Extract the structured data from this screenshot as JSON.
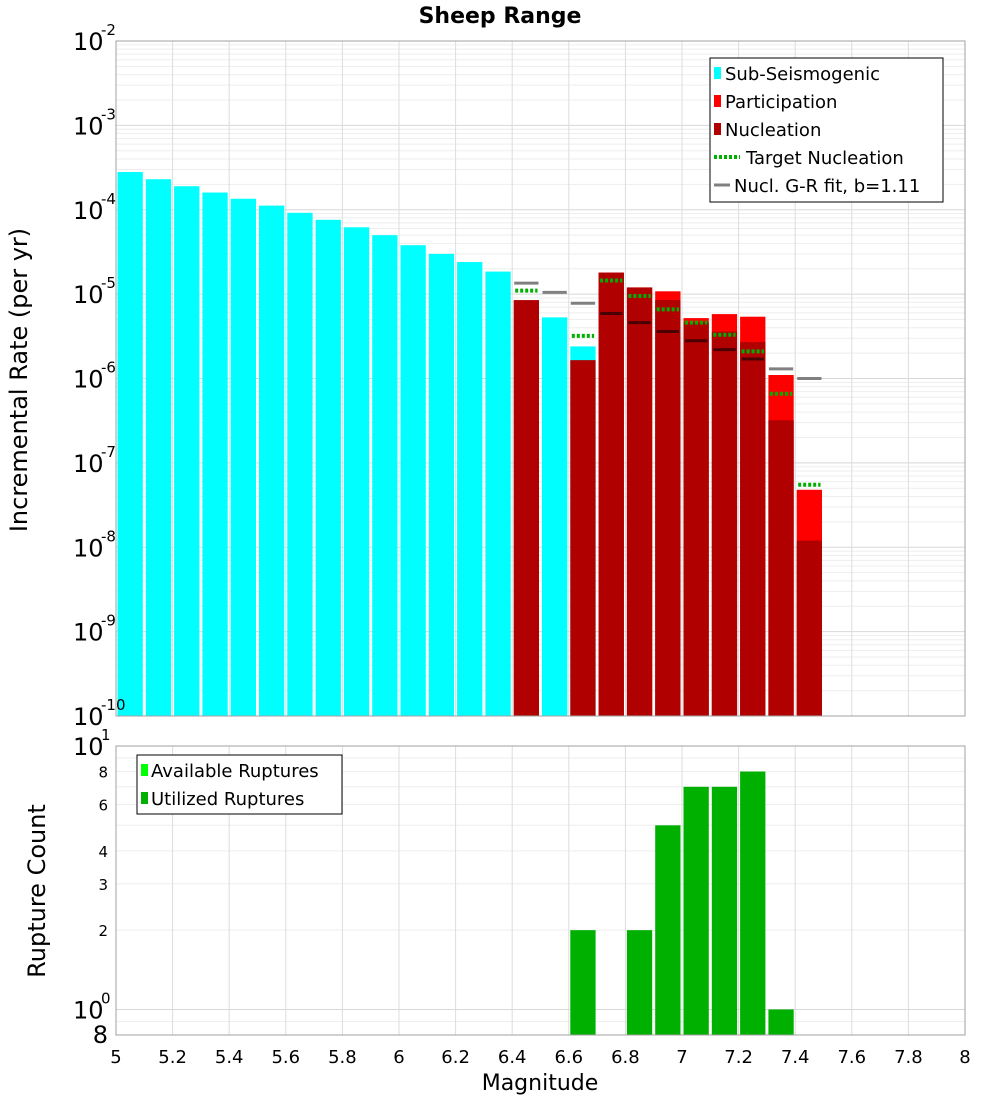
{
  "chart_data": [
    {
      "type": "bar",
      "title": "Sheep Range",
      "ylabel": "Incremental Rate (per yr)",
      "y_scale": "log",
      "ylim_exponents": [
        -10,
        -2
      ],
      "y_tick_exponents": [
        "-10",
        "-9",
        "-8",
        "-7",
        "-6",
        "-5",
        "-4",
        "-3",
        "-2"
      ],
      "xlim": [
        5,
        8
      ],
      "bin_width": 0.1,
      "colors": {
        "sub_seismogenic": "#00ffff",
        "participation": "#ff0000",
        "nucleation": "#b00000",
        "target_nucleation": "#00b000",
        "gr_fit": "#808080",
        "nucleation_marker": "#4a0000"
      },
      "legend": {
        "position": "top-right",
        "entries": [
          "Sub-Seismogenic",
          "Participation",
          "Nucleation",
          "Target Nucleation",
          "Nucl. G-R fit, b=1.11"
        ]
      },
      "series": [
        {
          "name": "Sub-Seismogenic",
          "kind": "bar",
          "points": [
            {
              "x": 5.05,
              "y": 0.00028
            },
            {
              "x": 5.15,
              "y": 0.00023
            },
            {
              "x": 5.25,
              "y": 0.00019
            },
            {
              "x": 5.35,
              "y": 0.00016
            },
            {
              "x": 5.45,
              "y": 0.000135
            },
            {
              "x": 5.55,
              "y": 0.000112
            },
            {
              "x": 5.65,
              "y": 9.2e-05
            },
            {
              "x": 5.75,
              "y": 7.6e-05
            },
            {
              "x": 5.85,
              "y": 6.2e-05
            },
            {
              "x": 5.95,
              "y": 5e-05
            },
            {
              "x": 6.05,
              "y": 3.8e-05
            },
            {
              "x": 6.15,
              "y": 3e-05
            },
            {
              "x": 6.25,
              "y": 2.4e-05
            },
            {
              "x": 6.35,
              "y": 1.85e-05
            },
            {
              "x": 6.55,
              "y": 5.3e-06
            },
            {
              "x": 6.65,
              "y": 2.4e-06
            }
          ]
        },
        {
          "name": "Participation",
          "kind": "bar",
          "points": [
            {
              "x": 6.75,
              "y": 1.8e-05
            },
            {
              "x": 6.85,
              "y": 1.2e-05
            },
            {
              "x": 6.95,
              "y": 1.08e-05
            },
            {
              "x": 7.05,
              "y": 5.2e-06
            },
            {
              "x": 7.15,
              "y": 5.8e-06
            },
            {
              "x": 7.25,
              "y": 5.4e-06
            },
            {
              "x": 7.35,
              "y": 1.1e-06
            },
            {
              "x": 7.45,
              "y": 4.8e-08
            }
          ]
        },
        {
          "name": "Nucleation",
          "kind": "bar",
          "points": [
            {
              "x": 6.45,
              "y": 8.5e-06
            },
            {
              "x": 6.65,
              "y": 1.65e-06
            },
            {
              "x": 6.75,
              "y": 1.8e-05
            },
            {
              "x": 6.85,
              "y": 1.2e-05
            },
            {
              "x": 6.95,
              "y": 8.5e-06
            },
            {
              "x": 7.05,
              "y": 4.6e-06
            },
            {
              "x": 7.15,
              "y": 3.6e-06
            },
            {
              "x": 7.25,
              "y": 2.7e-06
            },
            {
              "x": 7.35,
              "y": 3.2e-07
            },
            {
              "x": 7.45,
              "y": 1.2e-08
            }
          ]
        },
        {
          "name": "Target Nucleation",
          "kind": "dotted-segment",
          "points": [
            {
              "x": 6.45,
              "y": 1.1e-05
            },
            {
              "x": 6.65,
              "y": 3.2e-06
            },
            {
              "x": 6.75,
              "y": 1.45e-05
            },
            {
              "x": 6.85,
              "y": 9.5e-06
            },
            {
              "x": 6.95,
              "y": 6.6e-06
            },
            {
              "x": 7.05,
              "y": 4.6e-06
            },
            {
              "x": 7.15,
              "y": 3.3e-06
            },
            {
              "x": 7.25,
              "y": 2.1e-06
            },
            {
              "x": 7.35,
              "y": 6.6e-07
            },
            {
              "x": 7.45,
              "y": 5.5e-08
            }
          ]
        },
        {
          "name": "Nucl. G-R fit, b=1.11",
          "kind": "segment",
          "points": [
            {
              "x": 6.45,
              "y": 1.35e-05
            },
            {
              "x": 6.55,
              "y": 1.05e-05
            },
            {
              "x": 6.65,
              "y": 7.8e-06
            },
            {
              "x": 7.35,
              "y": 1.3e-06
            },
            {
              "x": 7.45,
              "y": 1e-06
            }
          ]
        },
        {
          "name": "Nucleation marker",
          "kind": "segment",
          "points": [
            {
              "x": 6.75,
              "y": 5.9e-06
            },
            {
              "x": 6.85,
              "y": 4.6e-06
            },
            {
              "x": 6.95,
              "y": 3.6e-06
            },
            {
              "x": 7.05,
              "y": 2.8e-06
            },
            {
              "x": 7.15,
              "y": 2.2e-06
            },
            {
              "x": 7.25,
              "y": 1.7e-06
            }
          ]
        }
      ]
    },
    {
      "type": "bar",
      "xlabel": "Magnitude",
      "ylabel": "Rupture Count",
      "y_scale": "log",
      "ylim": [
        0.8,
        10
      ],
      "y_tick_labels": [
        {
          "value": 2,
          "label": "2"
        },
        {
          "value": 3,
          "label": "3"
        },
        {
          "value": 4,
          "label": "4"
        },
        {
          "value": 6,
          "label": "6"
        },
        {
          "value": 8,
          "label": "8"
        }
      ],
      "y_decades": [
        {
          "value": 1,
          "base": "10",
          "exp": "0"
        },
        {
          "value": 10,
          "base": "10",
          "exp": "1"
        }
      ],
      "y_bottom_label": "8",
      "xlim": [
        5,
        8
      ],
      "x_ticks": [
        "5",
        "5.2",
        "5.4",
        "5.6",
        "5.8",
        "6",
        "6.2",
        "6.4",
        "6.6",
        "6.8",
        "7",
        "7.2",
        "7.4",
        "7.6",
        "7.8",
        "8"
      ],
      "bin_width": 0.1,
      "colors": {
        "available": "#00ff00",
        "utilized": "#00b000"
      },
      "legend": {
        "position": "top-left",
        "entries": [
          "Available Ruptures",
          "Utilized Ruptures"
        ]
      },
      "series": [
        {
          "name": "Utilized Ruptures",
          "kind": "bar",
          "points": [
            {
              "x": 6.65,
              "y": 2
            },
            {
              "x": 6.85,
              "y": 2
            },
            {
              "x": 6.95,
              "y": 5
            },
            {
              "x": 7.05,
              "y": 7
            },
            {
              "x": 7.15,
              "y": 7
            },
            {
              "x": 7.25,
              "y": 8
            },
            {
              "x": 7.35,
              "y": 1
            }
          ]
        }
      ]
    }
  ]
}
